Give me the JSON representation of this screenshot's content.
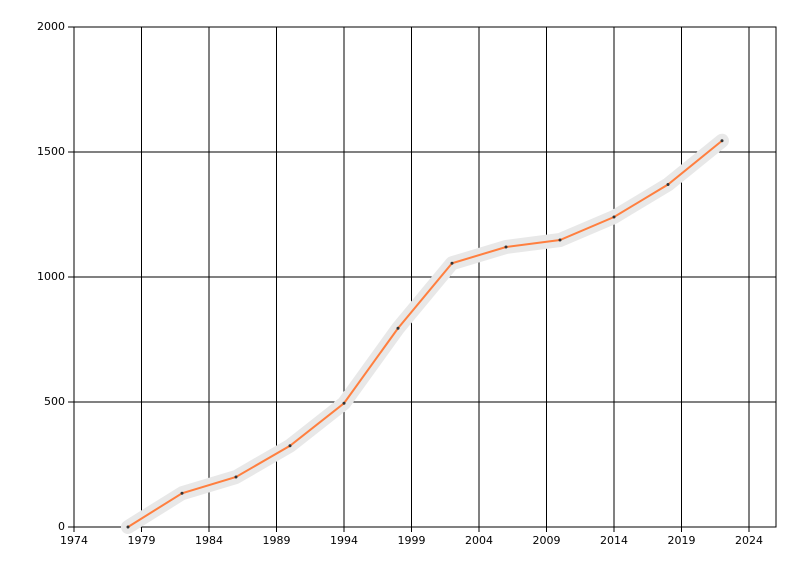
{
  "chart_data": {
    "type": "line",
    "x": [
      1978,
      1982,
      1986,
      1990,
      1994,
      1998,
      2002,
      2006,
      2010,
      2014,
      2018,
      2022
    ],
    "values": [
      0,
      135,
      200,
      325,
      495,
      795,
      1055,
      1120,
      1148,
      1240,
      1370,
      1545
    ],
    "color": "#ff7f3f",
    "xlim": [
      1974,
      2026
    ],
    "xticks": [
      1974,
      1979,
      1984,
      1989,
      1994,
      1999,
      2004,
      2009,
      2014,
      2019,
      2024
    ],
    "ylim": [
      0,
      2000
    ],
    "yticks": [
      0,
      500,
      1000,
      1500,
      2000
    ],
    "grid": true
  }
}
